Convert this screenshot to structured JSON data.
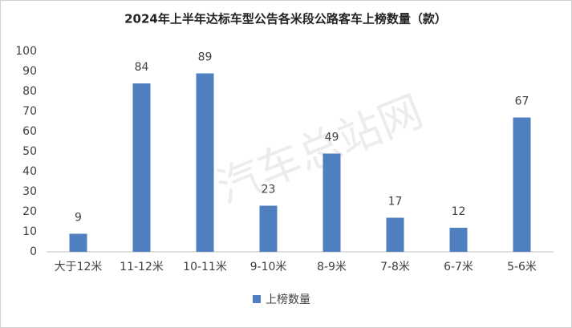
{
  "chart_data": {
    "type": "bar",
    "title": "2024年上半年达标车型公告各米段公路客车上榜数量（款）",
    "categories": [
      "大于12米",
      "11-12米",
      "10-11米",
      "9-10米",
      "8-9米",
      "7-8米",
      "6-7米",
      "5-6米"
    ],
    "series": [
      {
        "name": "上榜数量",
        "color": "#4f7fbf",
        "values": [
          9,
          84,
          89,
          23,
          49,
          17,
          12,
          67
        ]
      }
    ],
    "ylim": [
      0,
      100
    ],
    "yticks": [
      0,
      10,
      20,
      30,
      40,
      50,
      60,
      70,
      80,
      90,
      100
    ],
    "grid": false,
    "legend": "bottom",
    "watermark": "汽车总站网"
  }
}
